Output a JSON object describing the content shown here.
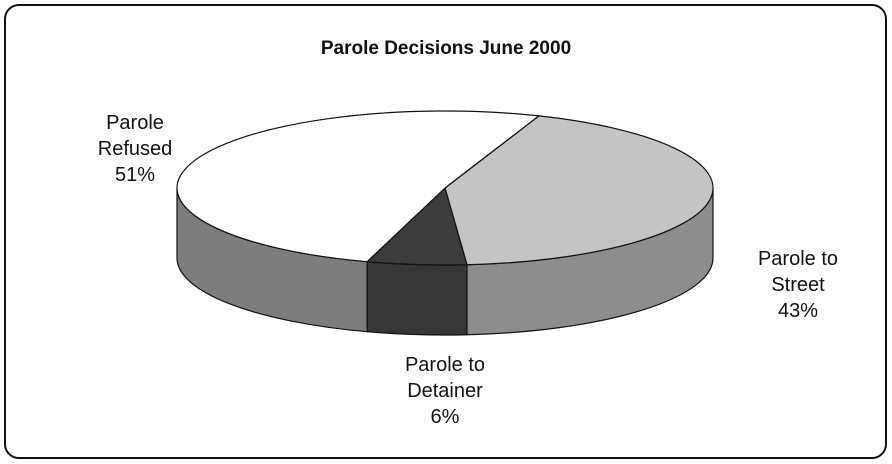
{
  "chart_data": {
    "type": "pie",
    "title": "Parole Decisions June 2000",
    "categories": [
      "Parole Refused",
      "Parole to Street",
      "Parole to Detainer"
    ],
    "values": [
      51,
      43,
      6
    ],
    "value_labels": [
      "51%",
      "43%",
      "6%"
    ],
    "colors": [
      "#ffffff",
      "#c4c4c4",
      "#3c3c3c"
    ]
  }
}
